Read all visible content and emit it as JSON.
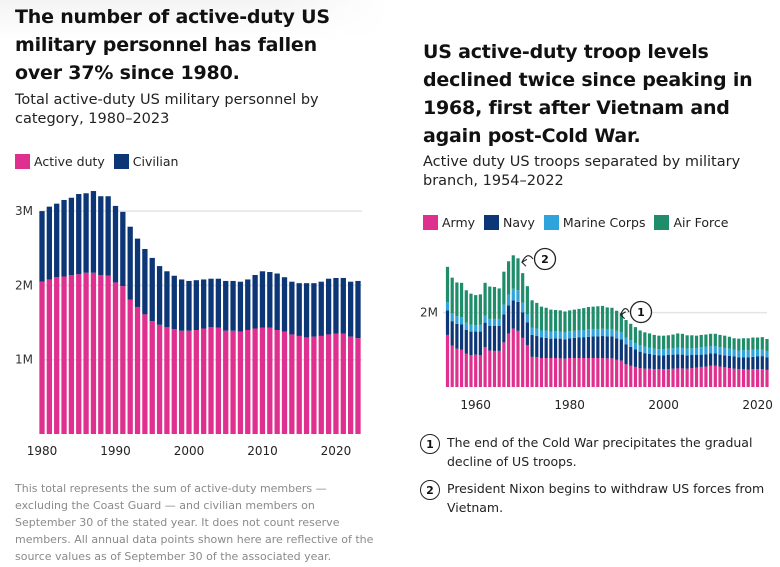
{
  "left": {
    "title": "The number of active-duty US military personnel has fallen over 37% since 1980.",
    "subtitle": "Total active-duty US military personnel by category, 1980–2023",
    "legend": [
      {
        "label": "Active duty",
        "color": "#e0308f"
      },
      {
        "label": "Civilian",
        "color": "#0d3677"
      }
    ],
    "note": "This total represents the sum of active-duty members — excluding the Coast Guard — and civilian members on September 30 of the stated year. It does not count reserve members. All annual data points shown here are reflective of the source values as of September 30 of the associated year."
  },
  "right": {
    "title": "US active-duty troop levels declined twice since peaking in 1968, first after Vietnam and again post-Cold War.",
    "subtitle": "Active duty US troops separated by military branch, 1954–2022",
    "legend": [
      {
        "label": "Army",
        "color": "#e0308f"
      },
      {
        "label": "Navy",
        "color": "#0d3677"
      },
      {
        "label": "Marine Corps",
        "color": "#2ea3dc"
      },
      {
        "label": "Air Force",
        "color": "#1f8c6a"
      }
    ],
    "annotations": [
      {
        "num": "1",
        "text": "The end of the Cold War precipitates the gradual decline of US troops.",
        "year": 1990
      },
      {
        "num": "2",
        "text": "President Nixon begins to withdraw US forces from Vietnam.",
        "year": 1969
      }
    ]
  },
  "chart_data": [
    {
      "type": "bar",
      "stacked": true,
      "title": "The number of active-duty US military personnel has fallen over 37% since 1980.",
      "subtitle": "Total active-duty US military personnel by category, 1980–2023",
      "xlabel": "",
      "ylabel": "",
      "ylim": [
        0,
        3300000
      ],
      "yticks": [
        1000000,
        2000000,
        3000000
      ],
      "ytick_labels": [
        "1M",
        "2M",
        "3M"
      ],
      "xtick_values": [
        1980,
        1990,
        2000,
        2010,
        2020
      ],
      "xtick_labels": [
        "1980",
        "1990",
        "2000",
        "2010",
        "2020"
      ],
      "grid": "horizontal",
      "legend_position": "top-left",
      "x": [
        1980,
        1981,
        1982,
        1983,
        1984,
        1985,
        1986,
        1987,
        1988,
        1989,
        1990,
        1991,
        1992,
        1993,
        1994,
        1995,
        1996,
        1997,
        1998,
        1999,
        2000,
        2001,
        2002,
        2003,
        2004,
        2005,
        2006,
        2007,
        2008,
        2009,
        2010,
        2011,
        2012,
        2013,
        2014,
        2015,
        2016,
        2017,
        2018,
        2019,
        2020,
        2021,
        2022,
        2023
      ],
      "series": [
        {
          "name": "Active duty",
          "color": "#e0308f",
          "values": [
            2050000,
            2080000,
            2110000,
            2120000,
            2140000,
            2150000,
            2170000,
            2170000,
            2140000,
            2130000,
            2040000,
            1990000,
            1810000,
            1710000,
            1610000,
            1520000,
            1470000,
            1440000,
            1410000,
            1390000,
            1390000,
            1400000,
            1420000,
            1440000,
            1430000,
            1390000,
            1390000,
            1380000,
            1400000,
            1420000,
            1430000,
            1430000,
            1400000,
            1380000,
            1340000,
            1320000,
            1300000,
            1310000,
            1320000,
            1340000,
            1350000,
            1350000,
            1310000,
            1290000
          ]
        },
        {
          "name": "Civilian",
          "color": "#0d3677",
          "values": [
            950000,
            980000,
            990000,
            1030000,
            1040000,
            1080000,
            1070000,
            1100000,
            1060000,
            1070000,
            1030000,
            1000000,
            980000,
            920000,
            880000,
            850000,
            790000,
            750000,
            720000,
            690000,
            670000,
            670000,
            660000,
            650000,
            660000,
            670000,
            670000,
            670000,
            680000,
            720000,
            760000,
            750000,
            760000,
            730000,
            710000,
            710000,
            730000,
            720000,
            730000,
            750000,
            750000,
            750000,
            740000,
            770000
          ]
        }
      ]
    },
    {
      "type": "bar",
      "stacked": true,
      "title": "US active-duty troop levels declined twice since peaking in 1968, first after Vietnam and again post-Cold War.",
      "subtitle": "Active duty US troops separated by military branch, 1954–2022",
      "xlabel": "",
      "ylabel": "",
      "ylim": [
        0,
        3700000
      ],
      "yticks": [
        2000000
      ],
      "ytick_labels": [
        "2M"
      ],
      "xtick_values": [
        1960,
        1980,
        2000,
        2020
      ],
      "xtick_labels": [
        "1960",
        "1980",
        "2000",
        "2020"
      ],
      "grid": "horizontal",
      "legend_position": "top-left",
      "annotations": [
        {
          "label": "1",
          "x": 1990
        },
        {
          "label": "2",
          "x": 1969
        }
      ],
      "x": [
        1954,
        1955,
        1956,
        1957,
        1958,
        1959,
        1960,
        1961,
        1962,
        1963,
        1964,
        1965,
        1966,
        1967,
        1968,
        1969,
        1970,
        1971,
        1972,
        1973,
        1974,
        1975,
        1976,
        1977,
        1978,
        1979,
        1980,
        1981,
        1982,
        1983,
        1984,
        1985,
        1986,
        1987,
        1988,
        1989,
        1990,
        1991,
        1992,
        1993,
        1994,
        1995,
        1996,
        1997,
        1998,
        1999,
        2000,
        2001,
        2002,
        2003,
        2004,
        2005,
        2006,
        2007,
        2008,
        2009,
        2010,
        2011,
        2012,
        2013,
        2014,
        2015,
        2016,
        2017,
        2018,
        2019,
        2020,
        2021,
        2022
      ],
      "series": [
        {
          "name": "Army",
          "color": "#e0308f",
          "values": [
            1400000,
            1110000,
            1030000,
            1000000,
            900000,
            860000,
            870000,
            860000,
            1070000,
            980000,
            970000,
            970000,
            1200000,
            1440000,
            1570000,
            1510000,
            1320000,
            1120000,
            810000,
            800000,
            780000,
            780000,
            780000,
            780000,
            770000,
            760000,
            780000,
            780000,
            780000,
            780000,
            780000,
            780000,
            780000,
            780000,
            770000,
            770000,
            730000,
            710000,
            610000,
            570000,
            540000,
            510000,
            490000,
            490000,
            480000,
            480000,
            480000,
            480000,
            490000,
            500000,
            500000,
            490000,
            510000,
            520000,
            540000,
            550000,
            570000,
            570000,
            550000,
            530000,
            510000,
            490000,
            480000,
            480000,
            470000,
            480000,
            480000,
            480000,
            460000
          ]
        },
        {
          "name": "Navy",
          "color": "#0d3677",
          "values": [
            660000,
            660000,
            670000,
            680000,
            640000,
            630000,
            620000,
            630000,
            660000,
            660000,
            670000,
            670000,
            750000,
            750000,
            760000,
            780000,
            690000,
            620000,
            590000,
            570000,
            550000,
            540000,
            520000,
            530000,
            530000,
            520000,
            530000,
            540000,
            550000,
            560000,
            570000,
            580000,
            580000,
            590000,
            590000,
            590000,
            580000,
            570000,
            540000,
            510000,
            470000,
            440000,
            420000,
            400000,
            380000,
            370000,
            370000,
            380000,
            380000,
            380000,
            370000,
            360000,
            350000,
            340000,
            330000,
            330000,
            330000,
            330000,
            320000,
            320000,
            330000,
            330000,
            320000,
            320000,
            330000,
            330000,
            340000,
            350000,
            340000
          ]
        },
        {
          "name": "Marine Corps",
          "color": "#2ea3dc",
          "values": [
            220000,
            210000,
            200000,
            200000,
            190000,
            180000,
            170000,
            180000,
            190000,
            190000,
            190000,
            190000,
            260000,
            290000,
            310000,
            310000,
            260000,
            210000,
            200000,
            200000,
            190000,
            200000,
            190000,
            190000,
            190000,
            190000,
            190000,
            190000,
            190000,
            190000,
            200000,
            200000,
            200000,
            200000,
            200000,
            200000,
            200000,
            190000,
            180000,
            180000,
            170000,
            170000,
            170000,
            170000,
            170000,
            170000,
            170000,
            170000,
            170000,
            180000,
            180000,
            180000,
            180000,
            190000,
            200000,
            200000,
            200000,
            200000,
            200000,
            200000,
            190000,
            180000,
            180000,
            190000,
            190000,
            190000,
            180000,
            180000,
            170000
          ]
        },
        {
          "name": "Air Force",
          "color": "#1f8c6a",
          "values": [
            950000,
            960000,
            910000,
            920000,
            870000,
            840000,
            810000,
            820000,
            880000,
            870000,
            860000,
            820000,
            890000,
            900000,
            900000,
            860000,
            790000,
            760000,
            730000,
            690000,
            640000,
            610000,
            590000,
            570000,
            570000,
            560000,
            560000,
            570000,
            580000,
            590000,
            600000,
            600000,
            610000,
            610000,
            580000,
            570000,
            540000,
            510000,
            470000,
            440000,
            430000,
            400000,
            390000,
            380000,
            370000,
            360000,
            360000,
            360000,
            370000,
            380000,
            380000,
            360000,
            350000,
            330000,
            330000,
            330000,
            330000,
            330000,
            330000,
            330000,
            320000,
            310000,
            320000,
            320000,
            320000,
            330000,
            330000,
            330000,
            320000
          ]
        }
      ]
    }
  ]
}
